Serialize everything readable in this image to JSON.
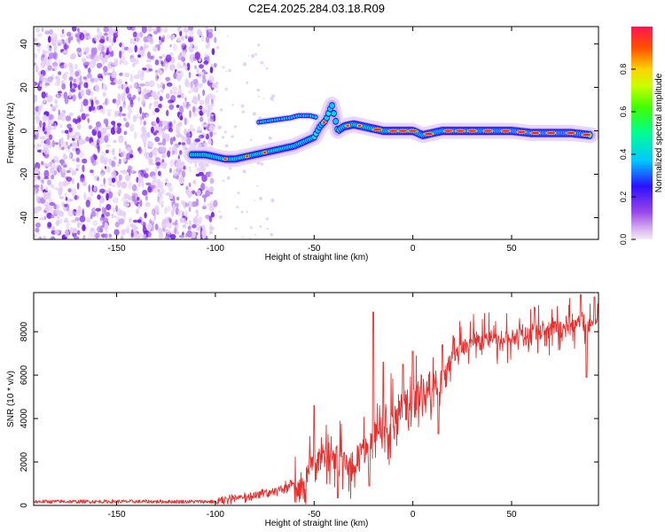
{
  "figure_title": "C2E4.2025.284.03.18.R09",
  "chart_data": [
    {
      "type": "heatmap",
      "title": "C2E4.2025.284.03.18.R09",
      "xlabel": "Height of straight line (km)",
      "ylabel": "Frequency (Hz)",
      "xlim": [
        -192,
        94
      ],
      "ylim": [
        -50,
        48
      ],
      "xticks": [
        -150,
        -100,
        -50,
        0,
        50
      ],
      "yticks": [
        -40,
        -20,
        0,
        20,
        40
      ],
      "xtick_labels": [
        "-150",
        "-100",
        "-50",
        "0",
        "50"
      ],
      "ytick_labels": [
        "-40",
        "-20",
        "0",
        "20",
        "40"
      ],
      "colorbar": {
        "label": "Normalized spectral amplitude",
        "range": [
          0,
          1
        ],
        "ticks": [
          0.0,
          0.2,
          0.4,
          0.6,
          0.8
        ],
        "tick_labels": [
          "0.0",
          "0.2",
          "0.4",
          "0.6",
          "0.8"
        ]
      },
      "noise_region": {
        "x_from": -192,
        "x_to": -100,
        "description_amplitude": 0.25
      },
      "ridge": [
        {
          "x": -112,
          "y": -11
        },
        {
          "x": -105,
          "y": -11
        },
        {
          "x": -100,
          "y": -12
        },
        {
          "x": -95,
          "y": -13
        },
        {
          "x": -90,
          "y": -13
        },
        {
          "x": -85,
          "y": -12
        },
        {
          "x": -80,
          "y": -11
        },
        {
          "x": -75,
          "y": -10
        },
        {
          "x": -70,
          "y": -9
        },
        {
          "x": -65,
          "y": -8
        },
        {
          "x": -60,
          "y": -7
        },
        {
          "x": -55,
          "y": -5
        },
        {
          "x": -50,
          "y": -3
        },
        {
          "x": -47,
          "y": 2
        },
        {
          "x": -44,
          "y": 5
        },
        {
          "x": -41,
          "y": 12
        },
        {
          "x": -38,
          "y": 0
        },
        {
          "x": -35,
          "y": 2
        },
        {
          "x": -30,
          "y": 3
        },
        {
          "x": -25,
          "y": 2
        },
        {
          "x": -20,
          "y": 1
        },
        {
          "x": -15,
          "y": 0
        },
        {
          "x": -10,
          "y": 0
        },
        {
          "x": -5,
          "y": 0
        },
        {
          "x": 0,
          "y": 0
        },
        {
          "x": 5,
          "y": -2
        },
        {
          "x": 10,
          "y": -1
        },
        {
          "x": 15,
          "y": 0
        },
        {
          "x": 20,
          "y": 0
        },
        {
          "x": 30,
          "y": 0
        },
        {
          "x": 40,
          "y": 0
        },
        {
          "x": 50,
          "y": 0
        },
        {
          "x": 60,
          "y": -1
        },
        {
          "x": 70,
          "y": -1
        },
        {
          "x": 80,
          "y": -1
        },
        {
          "x": 90,
          "y": -2
        }
      ],
      "side_branch": [
        {
          "x": -78,
          "y": 4
        },
        {
          "x": -70,
          "y": 5
        },
        {
          "x": -62,
          "y": 6
        },
        {
          "x": -58,
          "y": 7
        },
        {
          "x": -52,
          "y": 7
        },
        {
          "x": -48,
          "y": 6
        }
      ]
    },
    {
      "type": "line",
      "xlabel": "Height of straight line (km)",
      "ylabel": "SNR (10 * v/v)",
      "xlim": [
        -192,
        94
      ],
      "ylim": [
        0,
        9800
      ],
      "xticks": [
        -150,
        -100,
        -50,
        0,
        50
      ],
      "yticks": [
        0,
        2000,
        4000,
        6000,
        8000
      ],
      "xtick_labels": [
        "-150",
        "-100",
        "-50",
        "0",
        "50"
      ],
      "ytick_labels": [
        "0",
        "2000",
        "4000",
        "6000",
        "8000"
      ],
      "series": [
        {
          "name": "SNR",
          "color": "#e8302e",
          "envelope": [
            {
              "x": -192,
              "y": 150
            },
            {
              "x": -100,
              "y": 150
            },
            {
              "x": -95,
              "y": 400
            },
            {
              "x": -80,
              "y": 550
            },
            {
              "x": -70,
              "y": 700
            },
            {
              "x": -60,
              "y": 1100
            },
            {
              "x": -55,
              "y": 1700
            },
            {
              "x": -50,
              "y": 2700
            },
            {
              "x": -45,
              "y": 2900
            },
            {
              "x": -40,
              "y": 2700
            },
            {
              "x": -35,
              "y": 2600
            },
            {
              "x": -30,
              "y": 2400
            },
            {
              "x": -25,
              "y": 3200
            },
            {
              "x": -20,
              "y": 3800
            },
            {
              "x": -15,
              "y": 4200
            },
            {
              "x": -10,
              "y": 4700
            },
            {
              "x": -5,
              "y": 5100
            },
            {
              "x": 0,
              "y": 5400
            },
            {
              "x": 5,
              "y": 5800
            },
            {
              "x": 10,
              "y": 6200
            },
            {
              "x": 15,
              "y": 6500
            },
            {
              "x": 20,
              "y": 7200
            },
            {
              "x": 25,
              "y": 7700
            },
            {
              "x": 30,
              "y": 7900
            },
            {
              "x": 40,
              "y": 8000
            },
            {
              "x": 50,
              "y": 8200
            },
            {
              "x": 60,
              "y": 8300
            },
            {
              "x": 70,
              "y": 8500
            },
            {
              "x": 80,
              "y": 8700
            },
            {
              "x": 94,
              "y": 8800
            }
          ],
          "peaks": [
            {
              "x": -50,
              "y": 4600
            },
            {
              "x": -20,
              "y": 8900
            },
            {
              "x": -15,
              "y": 6600
            },
            {
              "x": -5,
              "y": 6500
            },
            {
              "x": 0,
              "y": 7100
            },
            {
              "x": 15,
              "y": 7400
            },
            {
              "x": 85,
              "y": 9700
            },
            {
              "x": 92,
              "y": 9600
            }
          ],
          "dips": [
            {
              "x": -38,
              "y": 350
            },
            {
              "x": -22,
              "y": 900
            },
            {
              "x": 13,
              "y": 3300
            },
            {
              "x": 88,
              "y": 5900
            }
          ]
        }
      ]
    }
  ]
}
